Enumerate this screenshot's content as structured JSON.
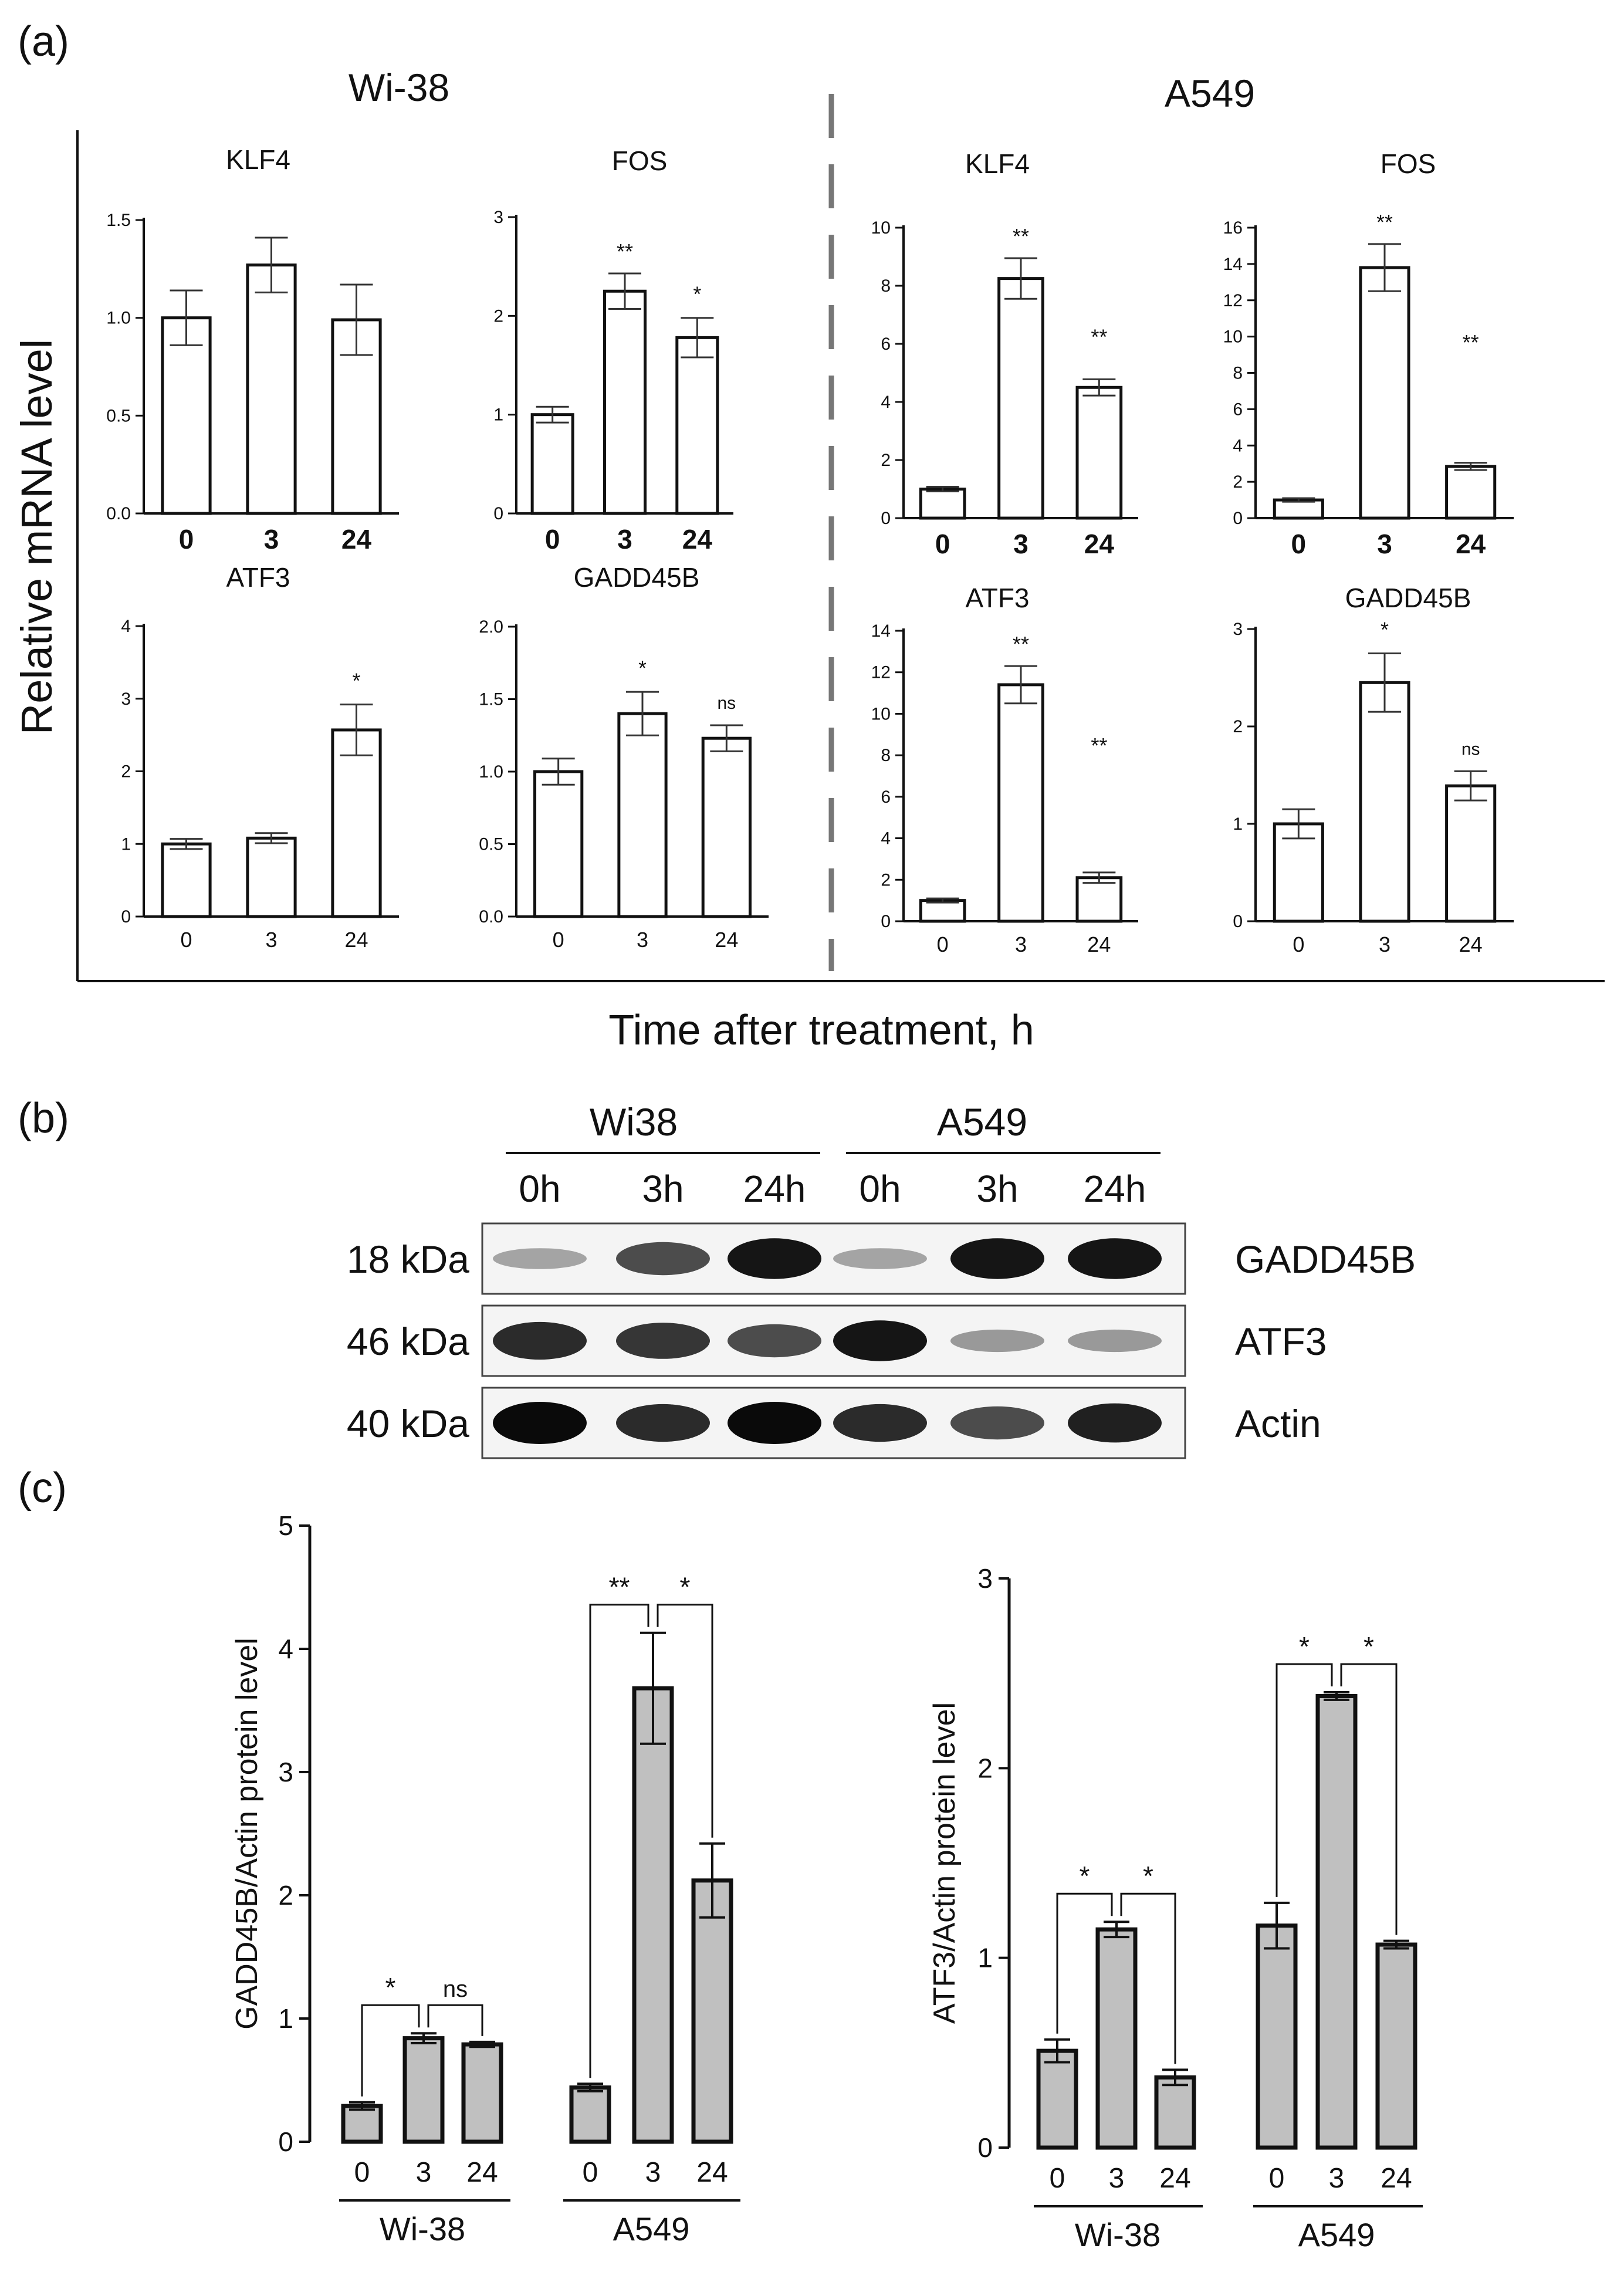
{
  "panel_labels": {
    "a": "(a)",
    "b": "(b)",
    "c": "(c)"
  },
  "panel_a": {
    "group_wi38": "Wi-38",
    "group_a549": "A549",
    "y_label": "Relative mRNA level",
    "x_label": "Time after treatment, h"
  },
  "panel_b": {
    "group_wi38": "Wi38",
    "group_a549": "A549",
    "lanes": [
      "0h",
      "3h",
      "24h",
      "0h",
      "3h",
      "24h"
    ],
    "rows": [
      {
        "kda": "18 kDa",
        "protein": "GADD45B",
        "intensity": [
          0.3,
          0.7,
          0.95,
          0.3,
          0.95,
          0.95
        ]
      },
      {
        "kda": "46 kDa",
        "protein": "ATF3",
        "intensity": [
          0.85,
          0.8,
          0.7,
          0.95,
          0.35,
          0.35
        ]
      },
      {
        "kda": "40 kDa",
        "protein": "Actin",
        "intensity": [
          1.0,
          0.85,
          1.0,
          0.85,
          0.7,
          0.9
        ]
      }
    ]
  },
  "panel_c": {
    "groups": [
      "Wi-38",
      "A549"
    ]
  },
  "chart_data": [
    {
      "id": "a1",
      "type": "bar",
      "title": "KLF4",
      "categories": [
        "0",
        "3",
        "24"
      ],
      "values": [
        1.0,
        1.27,
        0.99
      ],
      "errors": [
        0.14,
        0.14,
        0.18
      ],
      "ylim": [
        0,
        1.5
      ],
      "yticks": [
        "0.0",
        "0.5",
        "1.0",
        "1.5"
      ],
      "annotations": [
        "",
        "",
        ""
      ]
    },
    {
      "id": "a2",
      "type": "bar",
      "title": "FOS",
      "categories": [
        "0",
        "3",
        "24"
      ],
      "values": [
        1.0,
        2.25,
        1.78
      ],
      "errors": [
        0.08,
        0.18,
        0.2
      ],
      "ylim": [
        0,
        3
      ],
      "yticks": [
        "0",
        "1",
        "2",
        "3"
      ],
      "annotations": [
        "",
        "**",
        "*"
      ]
    },
    {
      "id": "a3",
      "type": "bar",
      "title": "KLF4",
      "categories": [
        "0",
        "3",
        "24"
      ],
      "values": [
        1.0,
        8.25,
        4.5
      ],
      "errors": [
        0.08,
        0.7,
        0.28
      ],
      "ylim": [
        0,
        10
      ],
      "yticks": [
        "0",
        "2",
        "4",
        "6",
        "8",
        "10"
      ],
      "annotations": [
        "",
        "**",
        "**"
      ]
    },
    {
      "id": "a4",
      "type": "bar",
      "title": "FOS",
      "categories": [
        "0",
        "3",
        "24"
      ],
      "values": [
        1.0,
        13.8,
        2.85
      ],
      "errors": [
        0.1,
        1.3,
        0.2
      ],
      "ylim": [
        0,
        16
      ],
      "yticks": [
        "0",
        "2",
        "4",
        "6",
        "8",
        "10",
        "12",
        "14",
        "16"
      ],
      "annotations": [
        "",
        "**",
        "**"
      ]
    },
    {
      "id": "a5",
      "type": "bar",
      "title": "ATF3",
      "categories": [
        "0",
        "3",
        "24"
      ],
      "values": [
        1.0,
        1.08,
        2.57
      ],
      "errors": [
        0.07,
        0.07,
        0.35
      ],
      "ylim": [
        0,
        4
      ],
      "yticks": [
        "0",
        "1",
        "2",
        "3",
        "4"
      ],
      "annotations": [
        "",
        "",
        "*"
      ]
    },
    {
      "id": "a6",
      "type": "bar",
      "title": "GADD45B",
      "categories": [
        "0",
        "3",
        "24"
      ],
      "values": [
        1.0,
        1.4,
        1.23
      ],
      "errors": [
        0.09,
        0.15,
        0.09
      ],
      "ylim": [
        0,
        2.0
      ],
      "yticks": [
        "0.0",
        "0.5",
        "1.0",
        "1.5",
        "2.0"
      ],
      "annotations": [
        "",
        "*",
        "ns"
      ]
    },
    {
      "id": "a7",
      "type": "bar",
      "title": "ATF3",
      "categories": [
        "0",
        "3",
        "24"
      ],
      "values": [
        1.0,
        11.4,
        2.1
      ],
      "errors": [
        0.1,
        0.9,
        0.25
      ],
      "ylim": [
        0,
        14
      ],
      "yticks": [
        "0",
        "2",
        "4",
        "6",
        "8",
        "10",
        "12",
        "14"
      ],
      "annotations": [
        "",
        "**",
        "**"
      ]
    },
    {
      "id": "a8",
      "type": "bar",
      "title": "GADD45B",
      "categories": [
        "0",
        "3",
        "24"
      ],
      "values": [
        1.0,
        2.45,
        1.39
      ],
      "errors": [
        0.15,
        0.3,
        0.15
      ],
      "ylim": [
        0,
        3
      ],
      "yticks": [
        "0",
        "1",
        "2",
        "3"
      ],
      "annotations": [
        "",
        "*",
        "ns"
      ]
    },
    {
      "id": "c1",
      "type": "bar",
      "title": "",
      "ylabel": "GADD45B/Actin protein level",
      "groups": [
        "Wi-38",
        "A549"
      ],
      "categories": [
        "0",
        "3",
        "24",
        "0",
        "3",
        "24"
      ],
      "values": [
        0.29,
        0.84,
        0.79,
        0.44,
        3.68,
        2.12
      ],
      "errors": [
        0.03,
        0.04,
        0.02,
        0.03,
        0.45,
        0.3
      ],
      "ylim": [
        0,
        5
      ],
      "yticks": [
        "0",
        "1",
        "2",
        "3",
        "4",
        "5"
      ],
      "comparisons": [
        {
          "from": 0,
          "to": 1,
          "label": "*"
        },
        {
          "from": 1,
          "to": 2,
          "label": "ns"
        },
        {
          "from": 3,
          "to": 4,
          "label": "**"
        },
        {
          "from": 4,
          "to": 5,
          "label": "*"
        }
      ]
    },
    {
      "id": "c2",
      "type": "bar",
      "title": "",
      "ylabel": "ATF3/Actin protein level",
      "groups": [
        "Wi-38",
        "A549"
      ],
      "categories": [
        "0",
        "3",
        "24",
        "0",
        "3",
        "24"
      ],
      "values": [
        0.51,
        1.15,
        0.37,
        1.17,
        2.38,
        1.07
      ],
      "errors": [
        0.06,
        0.04,
        0.04,
        0.12,
        0.02,
        0.02
      ],
      "ylim": [
        0,
        3
      ],
      "yticks": [
        "0",
        "1",
        "2",
        "3"
      ],
      "comparisons": [
        {
          "from": 0,
          "to": 1,
          "label": "*"
        },
        {
          "from": 1,
          "to": 2,
          "label": "*"
        },
        {
          "from": 3,
          "to": 4,
          "label": "*"
        },
        {
          "from": 4,
          "to": 5,
          "label": "*"
        }
      ]
    }
  ]
}
